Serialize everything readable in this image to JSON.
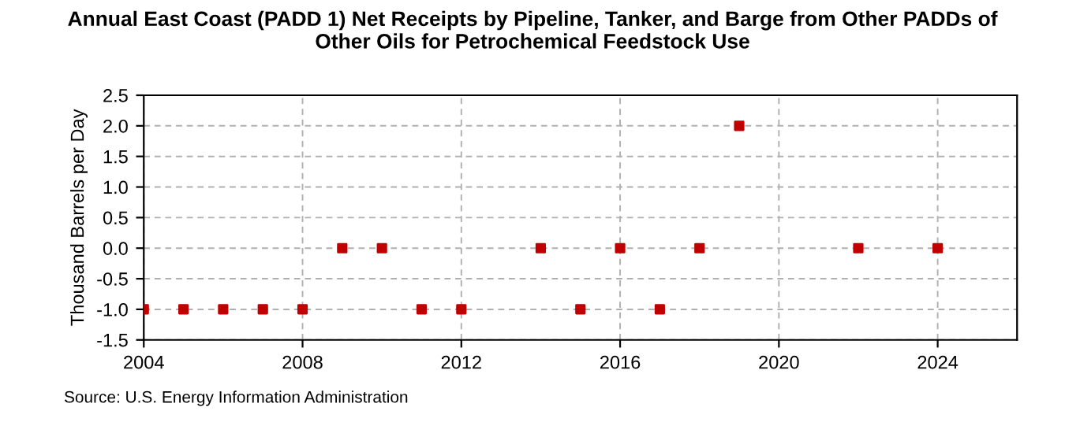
{
  "chart_data": {
    "type": "scatter",
    "title": "Annual East Coast (PADD 1) Net Receipts by Pipeline, Tanker, and Barge from Other PADDs of\nOther Oils for Petrochemical Feedstock Use",
    "ylabel": "Thousand Barrels per Day",
    "x": [
      2004,
      2005,
      2006,
      2007,
      2008,
      2009,
      2010,
      2011,
      2012,
      2014,
      2015,
      2016,
      2017,
      2018,
      2019,
      2022,
      2024
    ],
    "series": [
      {
        "color": "#c00000",
        "values": [
          -1,
          -1,
          -1,
          -1,
          -1,
          0,
          0,
          -1,
          -1,
          0,
          -1,
          0,
          -1,
          0,
          2,
          0,
          0
        ]
      }
    ],
    "xlim": [
      2004,
      2026
    ],
    "xticks": [
      2004,
      2008,
      2012,
      2016,
      2020,
      2024
    ],
    "ylim": [
      -1.5,
      2.5
    ],
    "yticks": [
      {
        "value": -1.5,
        "label": "-1.5"
      },
      {
        "value": -1.0,
        "label": "-1.0"
      },
      {
        "value": -0.5,
        "label": "-0.5"
      },
      {
        "value": 0.0,
        "label": "0.0"
      },
      {
        "value": 0.5,
        "label": "0.5"
      },
      {
        "value": 1.0,
        "label": "1.0"
      },
      {
        "value": 1.5,
        "label": "1.5"
      },
      {
        "value": 2.0,
        "label": "2.0"
      },
      {
        "value": 2.5,
        "label": "2.5"
      }
    ],
    "grid": true,
    "marker": "square",
    "annotations": [
      "Source: U.S. Energy Information Administration"
    ]
  }
}
